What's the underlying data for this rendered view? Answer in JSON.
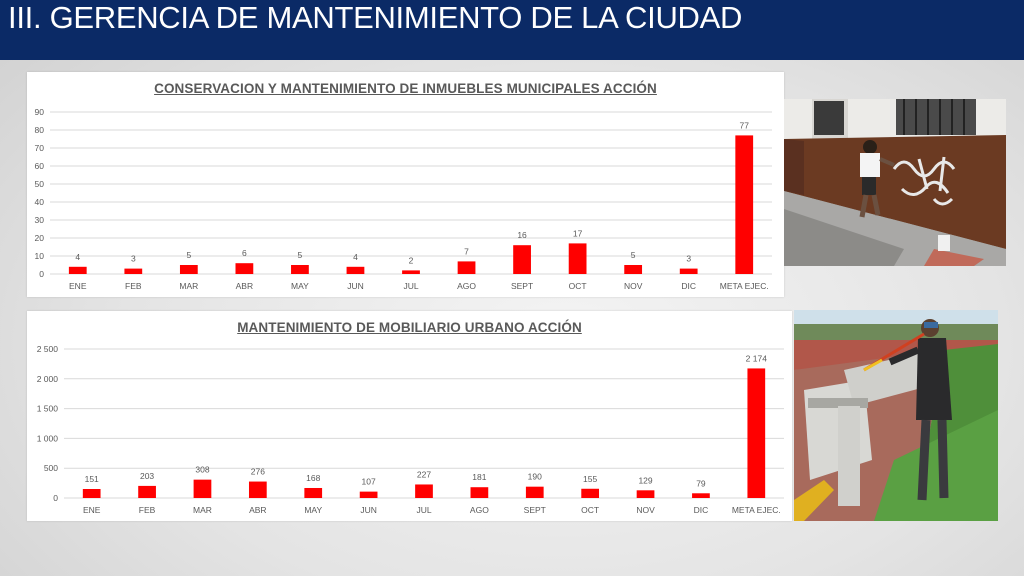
{
  "slide": {
    "title": "III. GERENCIA DE MANTENIMIENTO DE LA CIUDAD"
  },
  "colors": {
    "header_bg": "#0b2a66",
    "bar": "#ff0000",
    "grid": "#d9d9d9",
    "label": "#595959"
  },
  "chart_data": [
    {
      "type": "bar",
      "title": "CONSERVACION Y MANTENIMIENTO DE INMUEBLES MUNICIPALES ACCIÓN",
      "categories": [
        "ENE",
        "FEB",
        "MAR",
        "ABR",
        "MAY",
        "JUN",
        "JUL",
        "AGO",
        "SEPT",
        "OCT",
        "NOV",
        "DIC",
        "META EJEC."
      ],
      "values": [
        4,
        3,
        5,
        6,
        5,
        4,
        2,
        7,
        16,
        17,
        5,
        3,
        77
      ],
      "value_labels": [
        "4",
        "3",
        "5",
        "6",
        "5",
        "4",
        "2",
        "7",
        "16",
        "17",
        "5",
        "3",
        "77"
      ],
      "ylim": [
        0,
        90
      ],
      "yticks": [
        0,
        10,
        20,
        30,
        40,
        50,
        60,
        70,
        80,
        90
      ],
      "ytick_labels": [
        "0",
        "10",
        "20",
        "30",
        "40",
        "50",
        "60",
        "70",
        "80",
        "90"
      ],
      "grid": true,
      "legend": "none"
    },
    {
      "type": "bar",
      "title": "MANTENIMIENTO DE MOBILIARIO URBANO ACCIÓN",
      "categories": [
        "ENE",
        "FEB",
        "MAR",
        "ABR",
        "MAY",
        "JUN",
        "JUL",
        "AGO",
        "SEPT",
        "OCT",
        "NOV",
        "DIC",
        "META EJEC."
      ],
      "values": [
        151,
        203,
        308,
        276,
        168,
        107,
        227,
        181,
        190,
        155,
        129,
        79,
        2174
      ],
      "value_labels": [
        "151",
        "203",
        "308",
        "276",
        "168",
        "107",
        "227",
        "181",
        "190",
        "155",
        "129",
        "79",
        "2 174"
      ],
      "ylim": [
        0,
        2500
      ],
      "yticks": [
        0,
        500,
        1000,
        1500,
        2000,
        2500
      ],
      "ytick_labels": [
        "0",
        "500",
        "1 000",
        "1 500",
        "2 000",
        "2 500"
      ],
      "grid": true,
      "legend": "none"
    }
  ]
}
